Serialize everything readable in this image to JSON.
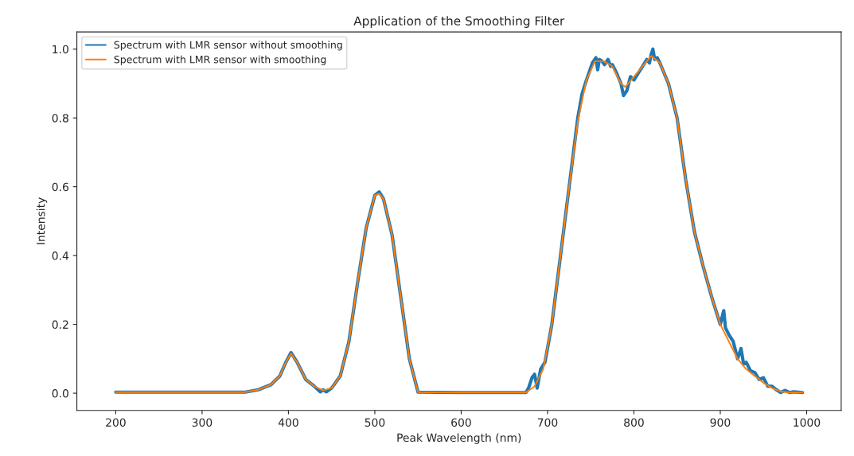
{
  "chart_data": {
    "type": "line",
    "title": "Application of the Smoothing Filter",
    "xlabel": "Peak Wavelength (nm)",
    "ylabel": "Intensity",
    "xlim": [
      155,
      1040
    ],
    "xticks": [
      200,
      300,
      400,
      500,
      600,
      700,
      800,
      900,
      1000
    ],
    "ylim": [
      -0.05,
      1.05
    ],
    "yticks": [
      {
        "value": 0,
        "label": "0.0"
      },
      0.2,
      0.4,
      0.6,
      0.8,
      {
        "value": 1,
        "label": "1.0"
      }
    ],
    "grid": false,
    "legend": "top left",
    "line_style": "solid",
    "marker": "none",
    "series": [
      {
        "name": "Spectrum with LMR sensor without smoothing",
        "color": "#1f77b4",
        "x": [
          200,
          350,
          365,
          380,
          390,
          397,
          403,
          410,
          420,
          430,
          437,
          440,
          444,
          450,
          460,
          470,
          480,
          490,
          500,
          505,
          510,
          520,
          530,
          540,
          550,
          600,
          675,
          678,
          682,
          685,
          688,
          692,
          697,
          705,
          710,
          715,
          725,
          735,
          740,
          745,
          752,
          756,
          758,
          760,
          763,
          766,
          770,
          773,
          775,
          780,
          785,
          788,
          792,
          796,
          800,
          805,
          810,
          815,
          818,
          820,
          822,
          824,
          827,
          830,
          840,
          850,
          860,
          870,
          880,
          890,
          900,
          904,
          906,
          910,
          915,
          920,
          924,
          927,
          930,
          935,
          940,
          945,
          950,
          955,
          960,
          965,
          970,
          975,
          980,
          985,
          995
        ],
        "values": [
          0.003,
          0.003,
          0.01,
          0.025,
          0.05,
          0.09,
          0.118,
          0.09,
          0.04,
          0.02,
          0.004,
          0.01,
          0.004,
          0.015,
          0.05,
          0.15,
          0.32,
          0.48,
          0.575,
          0.585,
          0.565,
          0.46,
          0.28,
          0.1,
          0.003,
          0.002,
          0.002,
          0.015,
          0.045,
          0.055,
          0.015,
          0.07,
          0.09,
          0.2,
          0.3,
          0.4,
          0.6,
          0.8,
          0.87,
          0.91,
          0.96,
          0.975,
          0.94,
          0.97,
          0.965,
          0.955,
          0.97,
          0.95,
          0.955,
          0.93,
          0.9,
          0.865,
          0.88,
          0.92,
          0.91,
          0.93,
          0.95,
          0.97,
          0.96,
          0.985,
          1.0,
          0.97,
          0.975,
          0.96,
          0.9,
          0.8,
          0.62,
          0.47,
          0.37,
          0.28,
          0.2,
          0.24,
          0.19,
          0.17,
          0.15,
          0.1,
          0.13,
          0.085,
          0.09,
          0.065,
          0.06,
          0.04,
          0.045,
          0.02,
          0.02,
          0.01,
          0.002,
          0.008,
          0.002,
          0.004,
          0.002
        ]
      },
      {
        "name": "Spectrum with LMR sensor with smoothing",
        "color": "#ff7f0e",
        "x": [
          200,
          350,
          365,
          380,
          390,
          397,
          403,
          410,
          420,
          430,
          440,
          450,
          460,
          470,
          480,
          490,
          500,
          505,
          510,
          520,
          530,
          540,
          550,
          600,
          675,
          685,
          695,
          705,
          715,
          725,
          735,
          745,
          755,
          765,
          775,
          785,
          790,
          800,
          810,
          820,
          830,
          840,
          850,
          860,
          870,
          880,
          890,
          900,
          910,
          920,
          930,
          940,
          950,
          960,
          970,
          980,
          995
        ],
        "values": [
          0.003,
          0.003,
          0.01,
          0.025,
          0.05,
          0.09,
          0.115,
          0.09,
          0.04,
          0.02,
          0.008,
          0.015,
          0.05,
          0.15,
          0.32,
          0.48,
          0.575,
          0.58,
          0.565,
          0.46,
          0.28,
          0.1,
          0.003,
          0.002,
          0.002,
          0.02,
          0.07,
          0.2,
          0.4,
          0.6,
          0.79,
          0.91,
          0.965,
          0.965,
          0.95,
          0.9,
          0.89,
          0.92,
          0.95,
          0.98,
          0.96,
          0.9,
          0.8,
          0.62,
          0.47,
          0.37,
          0.28,
          0.2,
          0.15,
          0.1,
          0.07,
          0.05,
          0.03,
          0.015,
          0.005,
          0.002,
          0.002
        ]
      }
    ]
  }
}
